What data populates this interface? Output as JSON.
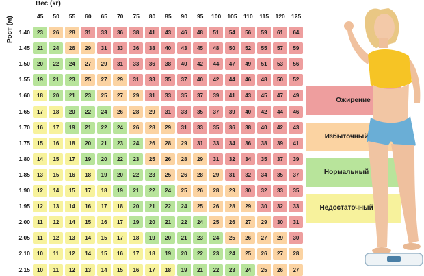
{
  "chart_data": {
    "type": "heatmap",
    "xlabel": "Вес (кг)",
    "ylabel": "Рост (м)",
    "weights": [
      "45",
      "50",
      "55",
      "60",
      "65",
      "70",
      "75",
      "80",
      "85",
      "90",
      "95",
      "100",
      "105",
      "110",
      "115",
      "120",
      "125"
    ],
    "heights": [
      "1.40",
      "1.45",
      "1.50",
      "1.55",
      "1.60",
      "1.65",
      "1.70",
      "1.75",
      "1.80",
      "1.85",
      "1.90",
      "1.95",
      "2.00",
      "2.05",
      "2.10",
      "2.15"
    ],
    "values": [
      [
        23,
        26,
        28,
        31,
        33,
        36,
        38,
        41,
        43,
        46,
        48,
        51,
        54,
        56,
        59,
        61,
        64
      ],
      [
        21,
        24,
        26,
        29,
        31,
        33,
        36,
        38,
        40,
        43,
        45,
        48,
        50,
        52,
        55,
        57,
        59
      ],
      [
        20,
        22,
        24,
        27,
        29,
        31,
        33,
        36,
        38,
        40,
        42,
        44,
        47,
        49,
        51,
        53,
        56
      ],
      [
        19,
        21,
        23,
        25,
        27,
        29,
        31,
        33,
        35,
        37,
        40,
        42,
        44,
        46,
        48,
        50,
        52
      ],
      [
        18,
        20,
        21,
        23,
        25,
        27,
        29,
        31,
        33,
        35,
        37,
        39,
        41,
        43,
        45,
        47,
        49
      ],
      [
        17,
        18,
        20,
        22,
        24,
        26,
        28,
        29,
        31,
        33,
        35,
        37,
        39,
        40,
        42,
        44,
        46
      ],
      [
        16,
        17,
        19,
        21,
        22,
        24,
        26,
        28,
        29,
        31,
        33,
        35,
        36,
        38,
        40,
        42,
        43
      ],
      [
        15,
        16,
        18,
        20,
        21,
        23,
        24,
        26,
        28,
        29,
        31,
        33,
        34,
        36,
        38,
        39,
        41
      ],
      [
        14,
        15,
        17,
        19,
        20,
        22,
        23,
        25,
        26,
        28,
        29,
        31,
        32,
        34,
        35,
        37,
        39
      ],
      [
        13,
        15,
        16,
        18,
        19,
        20,
        22,
        23,
        25,
        26,
        28,
        29,
        31,
        32,
        34,
        35,
        37
      ],
      [
        12,
        14,
        15,
        17,
        18,
        19,
        21,
        22,
        24,
        25,
        26,
        28,
        29,
        30,
        32,
        33,
        35
      ],
      [
        12,
        13,
        14,
        16,
        17,
        18,
        20,
        21,
        22,
        24,
        25,
        26,
        28,
        29,
        30,
        32,
        33
      ],
      [
        11,
        12,
        14,
        15,
        16,
        17,
        19,
        20,
        21,
        22,
        24,
        25,
        26,
        27,
        29,
        30,
        31
      ],
      [
        11,
        12,
        13,
        14,
        15,
        17,
        18,
        19,
        20,
        21,
        23,
        24,
        25,
        26,
        27,
        29,
        30
      ],
      [
        10,
        11,
        12,
        14,
        15,
        16,
        17,
        18,
        19,
        20,
        22,
        23,
        24,
        25,
        26,
        27,
        28
      ],
      [
        10,
        11,
        12,
        13,
        14,
        15,
        16,
        17,
        18,
        19,
        21,
        22,
        23,
        24,
        25,
        26,
        27
      ]
    ],
    "categories": [
      {
        "name": "Ожирение",
        "min": 30,
        "color": "#ee9e9e"
      },
      {
        "name": "Избыточный вес",
        "min": 25,
        "color": "#fbd3a2"
      },
      {
        "name": "Нормальный вес",
        "min": 18.5,
        "color": "#b8e49b"
      },
      {
        "name": "Недостаточный вес",
        "min": 0,
        "color": "#f7f29c"
      }
    ]
  },
  "legend": {
    "obese": "Ожирение",
    "overweight": "Избыточный вес",
    "normal": "Нормальный вес",
    "underweight": "Недостаточный вес"
  }
}
